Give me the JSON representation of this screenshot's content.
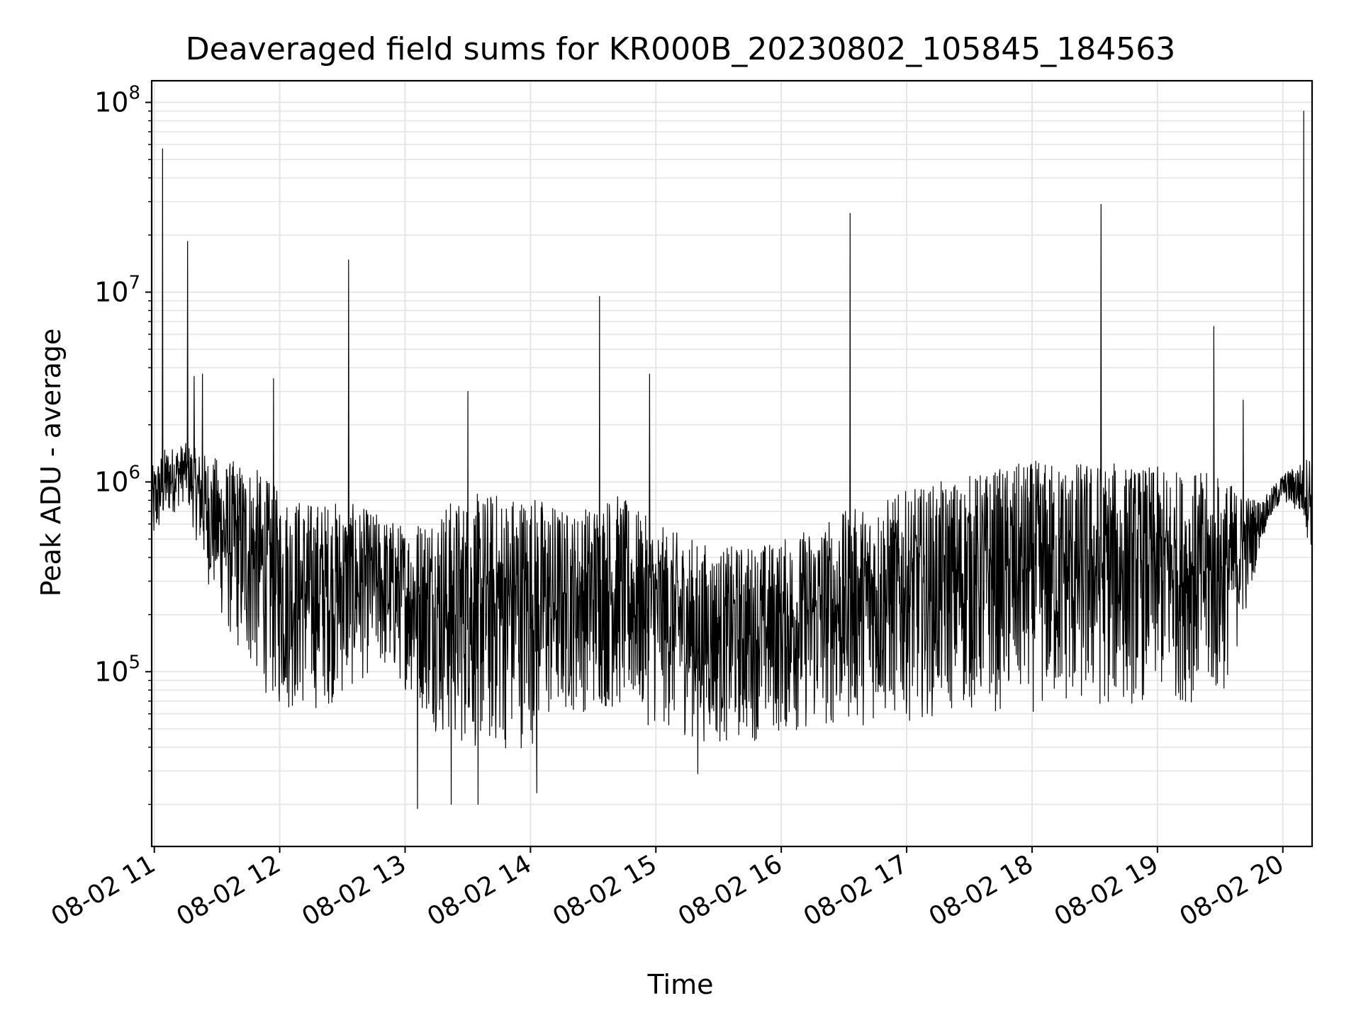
{
  "chart_data": {
    "type": "line",
    "title": "Deaveraged field sums for KR000B_20230802_105845_184563",
    "xlabel": "Time",
    "ylabel": "Peak ADU - average",
    "xlim": [
      "2023-08-02 10:58:45",
      "2023-08-02 20:14:00"
    ],
    "ylim": [
      12000,
      130000000
    ],
    "yscale": "log",
    "grid": true,
    "x_tick_labels": [
      "08-02 11",
      "08-02 12",
      "08-02 13",
      "08-02 14",
      "08-02 15",
      "08-02 16",
      "08-02 17",
      "08-02 18",
      "08-02 19",
      "08-02 20"
    ],
    "x_ticks": [
      "2023-08-02 11:00",
      "2023-08-02 12:00",
      "2023-08-02 13:00",
      "2023-08-02 14:00",
      "2023-08-02 15:00",
      "2023-08-02 16:00",
      "2023-08-02 17:00",
      "2023-08-02 18:00",
      "2023-08-02 19:00",
      "2023-08-02 20:00"
    ],
    "y_ticks": [
      {
        "value": 100000,
        "base": "10",
        "exp": "5"
      },
      {
        "value": 1000000,
        "base": "10",
        "exp": "6"
      },
      {
        "value": 10000000,
        "base": "10",
        "exp": "7"
      },
      {
        "value": 100000000,
        "base": "10",
        "exp": "8"
      }
    ],
    "line_color": "#000000",
    "grid_color": "#e5e5e5",
    "series": [
      {
        "envelope": [
          {
            "x": "2023-08-02 10:58:45",
            "hi": 1200000,
            "lo": 400000
          },
          {
            "x": "2023-08-02 11:05",
            "hi": 1500000,
            "lo": 600000
          },
          {
            "x": "2023-08-02 11:15",
            "hi": 1600000,
            "lo": 800000
          },
          {
            "x": "2023-08-02 11:25",
            "hi": 1400000,
            "lo": 300000
          },
          {
            "x": "2023-08-02 11:35",
            "hi": 1300000,
            "lo": 150000
          },
          {
            "x": "2023-08-02 11:45",
            "hi": 1300000,
            "lo": 100000
          },
          {
            "x": "2023-08-02 12:00",
            "hi": 900000,
            "lo": 60000
          },
          {
            "x": "2023-08-02 12:15",
            "hi": 800000,
            "lo": 60000
          },
          {
            "x": "2023-08-02 12:30",
            "hi": 800000,
            "lo": 70000
          },
          {
            "x": "2023-08-02 12:45",
            "hi": 700000,
            "lo": 100000
          },
          {
            "x": "2023-08-02 13:00",
            "hi": 600000,
            "lo": 80000
          },
          {
            "x": "2023-08-02 13:20",
            "hi": 800000,
            "lo": 40000
          },
          {
            "x": "2023-08-02 13:40",
            "hi": 900000,
            "lo": 35000
          },
          {
            "x": "2023-08-02 14:00",
            "hi": 900000,
            "lo": 40000
          },
          {
            "x": "2023-08-02 14:20",
            "hi": 700000,
            "lo": 60000
          },
          {
            "x": "2023-08-02 14:40",
            "hi": 900000,
            "lo": 60000
          },
          {
            "x": "2023-08-02 15:00",
            "hi": 600000,
            "lo": 50000
          },
          {
            "x": "2023-08-02 15:30",
            "hi": 450000,
            "lo": 40000
          },
          {
            "x": "2023-08-02 16:00",
            "hi": 500000,
            "lo": 45000
          },
          {
            "x": "2023-08-02 16:30",
            "hi": 700000,
            "lo": 50000
          },
          {
            "x": "2023-08-02 17:00",
            "hi": 900000,
            "lo": 55000
          },
          {
            "x": "2023-08-02 17:30",
            "hi": 1100000,
            "lo": 60000
          },
          {
            "x": "2023-08-02 18:00",
            "hi": 1300000,
            "lo": 60000
          },
          {
            "x": "2023-08-02 18:30",
            "hi": 1300000,
            "lo": 60000
          },
          {
            "x": "2023-08-02 19:00",
            "hi": 1200000,
            "lo": 70000
          },
          {
            "x": "2023-08-02 19:30",
            "hi": 1100000,
            "lo": 65000
          },
          {
            "x": "2023-08-02 19:40",
            "hi": 900000,
            "lo": 150000
          },
          {
            "x": "2023-08-02 19:50",
            "hi": 800000,
            "lo": 500000
          },
          {
            "x": "2023-08-02 20:00",
            "hi": 1100000,
            "lo": 800000
          },
          {
            "x": "2023-08-02 20:10",
            "hi": 1300000,
            "lo": 600000
          },
          {
            "x": "2023-08-02 20:14:00",
            "hi": 1500000,
            "lo": 400000
          }
        ],
        "spikes": [
          {
            "x": "2023-08-02 11:04",
            "y": 57000000
          },
          {
            "x": "2023-08-02 11:16",
            "y": 18500000
          },
          {
            "x": "2023-08-02 11:19",
            "y": 3600000
          },
          {
            "x": "2023-08-02 11:23",
            "y": 3700000
          },
          {
            "x": "2023-08-02 11:57",
            "y": 3500000
          },
          {
            "x": "2023-08-02 12:33",
            "y": 14800000
          },
          {
            "x": "2023-08-02 13:30",
            "y": 3000000
          },
          {
            "x": "2023-08-02 14:33",
            "y": 9500000
          },
          {
            "x": "2023-08-02 14:57",
            "y": 3700000
          },
          {
            "x": "2023-08-02 16:33",
            "y": 26000000
          },
          {
            "x": "2023-08-02 18:33",
            "y": 29000000
          },
          {
            "x": "2023-08-02 19:27",
            "y": 6600000
          },
          {
            "x": "2023-08-02 19:41",
            "y": 2700000
          },
          {
            "x": "2023-08-02 20:10",
            "y": 90000000
          }
        ],
        "dips": [
          {
            "x": "2023-08-02 13:06",
            "y": 19000
          },
          {
            "x": "2023-08-02 13:22",
            "y": 20000
          },
          {
            "x": "2023-08-02 13:35",
            "y": 20000
          },
          {
            "x": "2023-08-02 14:03",
            "y": 23000
          },
          {
            "x": "2023-08-02 15:20",
            "y": 29000
          }
        ]
      }
    ]
  }
}
